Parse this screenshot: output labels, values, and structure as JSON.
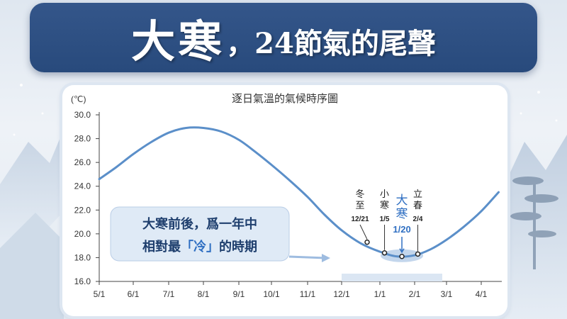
{
  "header": {
    "title_main": "大寒",
    "title_sub": "，24節氣的尾聲"
  },
  "colors": {
    "banner": "#2c4e80",
    "curve": "#5b8fc9",
    "highlight": "#2f6fc2",
    "callout_bg": "#dfeaf6",
    "callout_text": "#1f3f6e"
  },
  "chart_data": {
    "type": "line",
    "title": "逐日氣溫的氣候時序圖",
    "unit_label": "(℃)",
    "ylim": [
      16,
      30
    ],
    "yticks": [
      "30.0",
      "28.0",
      "26.0",
      "24.0",
      "22.0",
      "20.0",
      "18.0",
      "16.0"
    ],
    "xticks": [
      "5/1",
      "6/1",
      "7/1",
      "8/1",
      "9/1",
      "10/1",
      "11/1",
      "12/1",
      "1/1",
      "2/1",
      "3/1",
      "4/1"
    ],
    "grid": false,
    "series": [
      {
        "x": [
          "5/1",
          "5/16",
          "6/1",
          "6/16",
          "7/1",
          "7/16",
          "8/1",
          "8/16",
          "9/1",
          "9/16",
          "10/1",
          "10/16",
          "11/1",
          "11/16",
          "12/1",
          "12/16",
          "1/1",
          "1/16",
          "2/1",
          "2/16",
          "3/1",
          "3/16",
          "4/1",
          "4/16"
        ],
        "values": [
          24.6,
          25.6,
          26.7,
          27.7,
          28.5,
          28.9,
          28.9,
          28.6,
          27.9,
          26.9,
          25.8,
          24.5,
          23.1,
          21.6,
          20.3,
          19.2,
          18.5,
          18.1,
          18.2,
          18.7,
          19.5,
          20.6,
          21.9,
          23.5
        ]
      }
    ],
    "markers": [
      {
        "name_lines": [
          "冬",
          "至"
        ],
        "date": "12/21",
        "x": "12/21",
        "y": 19.3
      },
      {
        "name_lines": [
          "小",
          "寒"
        ],
        "date": "1/5",
        "x": "1/5",
        "y": 18.4
      },
      {
        "name_lines": [
          "大",
          "寒"
        ],
        "date": "1/20",
        "x": "1/20",
        "y": 18.1,
        "highlight": true
      },
      {
        "name_lines": [
          "立",
          "春"
        ],
        "date": "2/4",
        "x": "2/4",
        "y": 18.3
      }
    ],
    "callout": {
      "line1": "大寒前後，爲一年中",
      "line2_prefix": "相對最",
      "line2_keyword": "「冷」",
      "line2_suffix": "的時期"
    }
  }
}
